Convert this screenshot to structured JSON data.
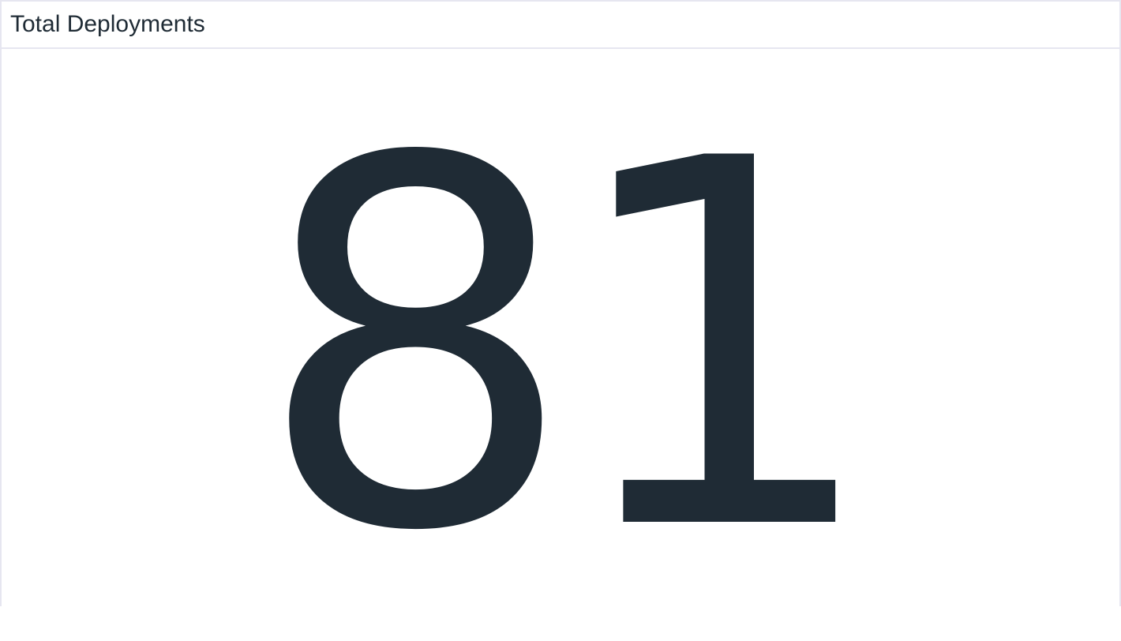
{
  "panel": {
    "title": "Total Deployments",
    "value": "81"
  },
  "colors": {
    "text": "#1f2b35",
    "border": "#e6e6f0",
    "background": "#ffffff"
  }
}
